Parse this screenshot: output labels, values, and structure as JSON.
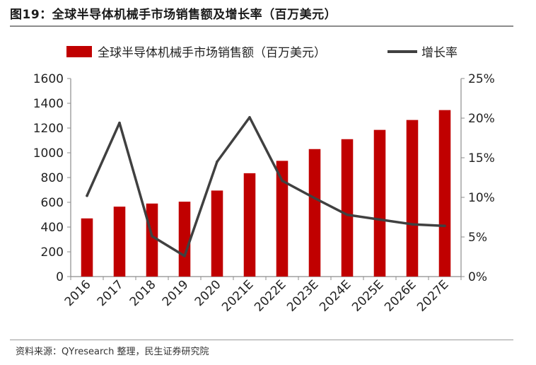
{
  "figure": {
    "title": "图19：全球半导体机械手市场销售额及增长率（百万美元）",
    "source": "资料来源：QYresearch 整理，民生证券研究院"
  },
  "colors": {
    "bar": "#c00000",
    "line": "#404040",
    "axis": "#8c8c8c"
  },
  "chart_data": {
    "type": "bar+line",
    "categories": [
      "2016",
      "2017",
      "2018",
      "2019",
      "2020",
      "2021E",
      "2022E",
      "2023E",
      "2024E",
      "2025E",
      "2026E",
      "2027E"
    ],
    "series": [
      {
        "name": "全球半导体机械手市场销售额（百万美元）",
        "type": "bar",
        "axis": "left",
        "values": [
          470,
          565,
          590,
          605,
          695,
          835,
          935,
          1030,
          1110,
          1185,
          1265,
          1345
        ]
      },
      {
        "name": "增长率",
        "type": "line",
        "axis": "right",
        "values": [
          10.2,
          19.4,
          5.1,
          2.6,
          14.5,
          20.1,
          12.1,
          9.9,
          7.8,
          7.2,
          6.6,
          6.4
        ]
      }
    ],
    "y_left": {
      "ylim": [
        0,
        1600
      ],
      "ticks": [
        "0",
        "200",
        "400",
        "600",
        "800",
        "1000",
        "1200",
        "1400",
        "1600"
      ]
    },
    "y_right": {
      "ylim": [
        0,
        25
      ],
      "ticks": [
        "0%",
        "5%",
        "10%",
        "15%",
        "20%",
        "25%"
      ]
    },
    "legend": "top",
    "grid": false
  }
}
